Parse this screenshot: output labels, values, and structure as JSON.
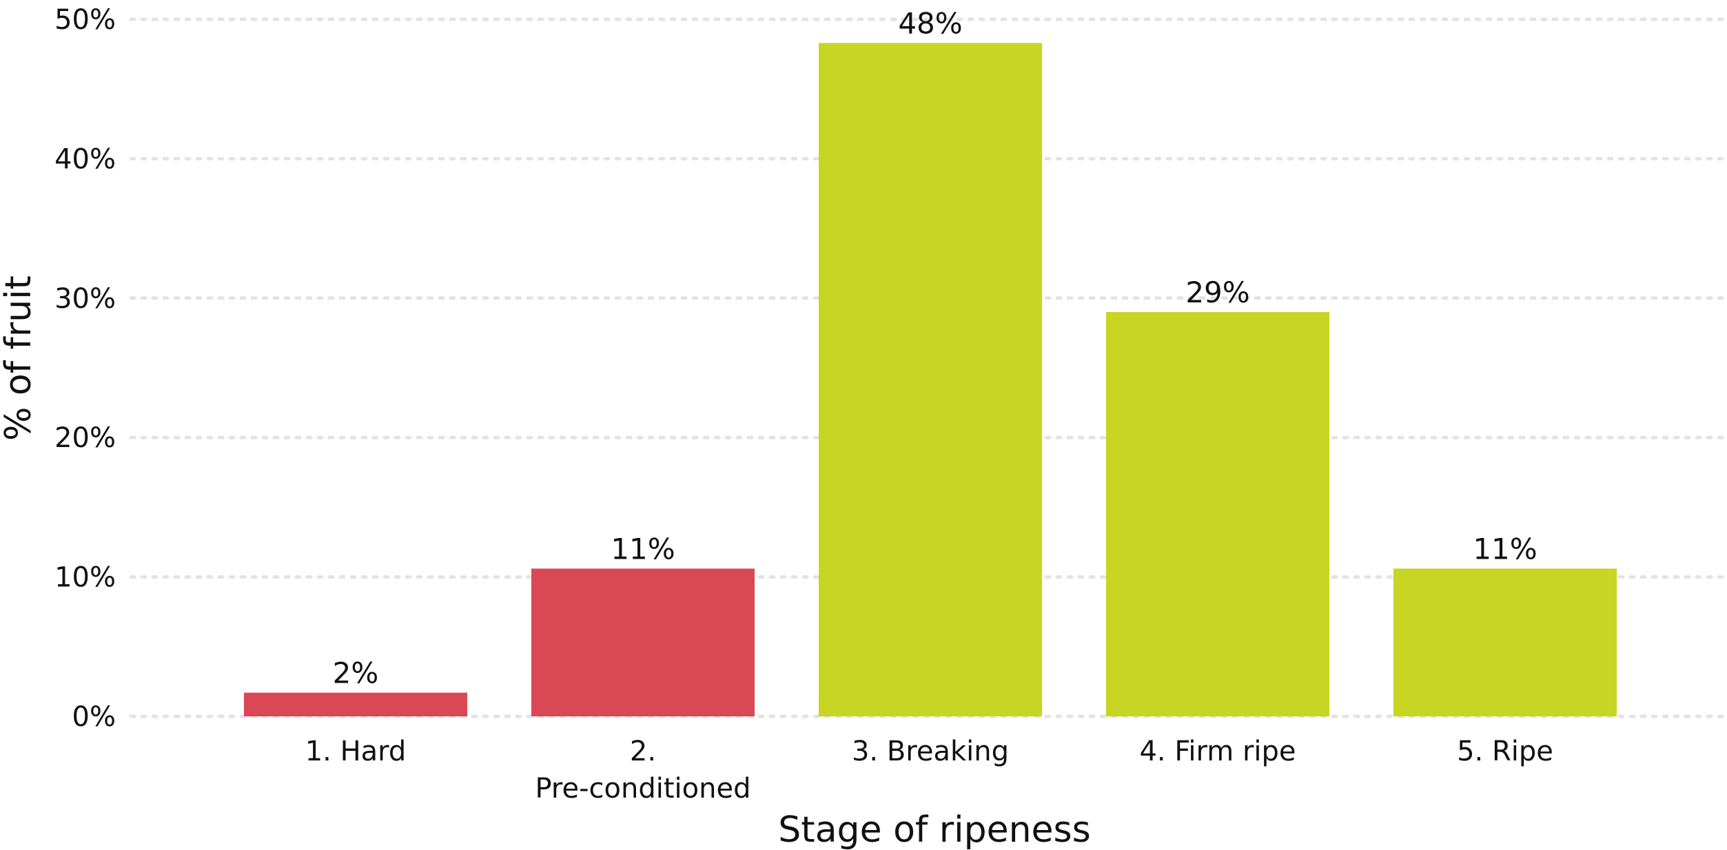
{
  "chart_data": {
    "type": "bar",
    "categories": [
      "1. Hard",
      "2. Pre-conditioned",
      "3. Breaking",
      "4. Firm ripe",
      "5. Ripe"
    ],
    "category_label_lines": [
      [
        "1. Hard"
      ],
      [
        "2.",
        "Pre-conditioned"
      ],
      [
        "3. Breaking"
      ],
      [
        "4. Firm ripe"
      ],
      [
        "5. Ripe"
      ]
    ],
    "values": [
      1.7,
      10.6,
      48.3,
      29.0,
      10.6
    ],
    "data_labels": [
      "2%",
      "11%",
      "48%",
      "29%",
      "11%"
    ],
    "bar_colors": [
      "#d94854",
      "#d94854",
      "#c8d523",
      "#c8d523",
      "#c8d523"
    ],
    "xlabel": "Stage of ripeness",
    "ylabel": "% of fruit",
    "ylim": [
      0,
      50
    ],
    "yticks": [
      0,
      10,
      20,
      30,
      40,
      50
    ],
    "ytick_labels": [
      "0%",
      "10%",
      "20%",
      "30%",
      "40%",
      "50%"
    ],
    "grid": true,
    "legend": "none"
  }
}
